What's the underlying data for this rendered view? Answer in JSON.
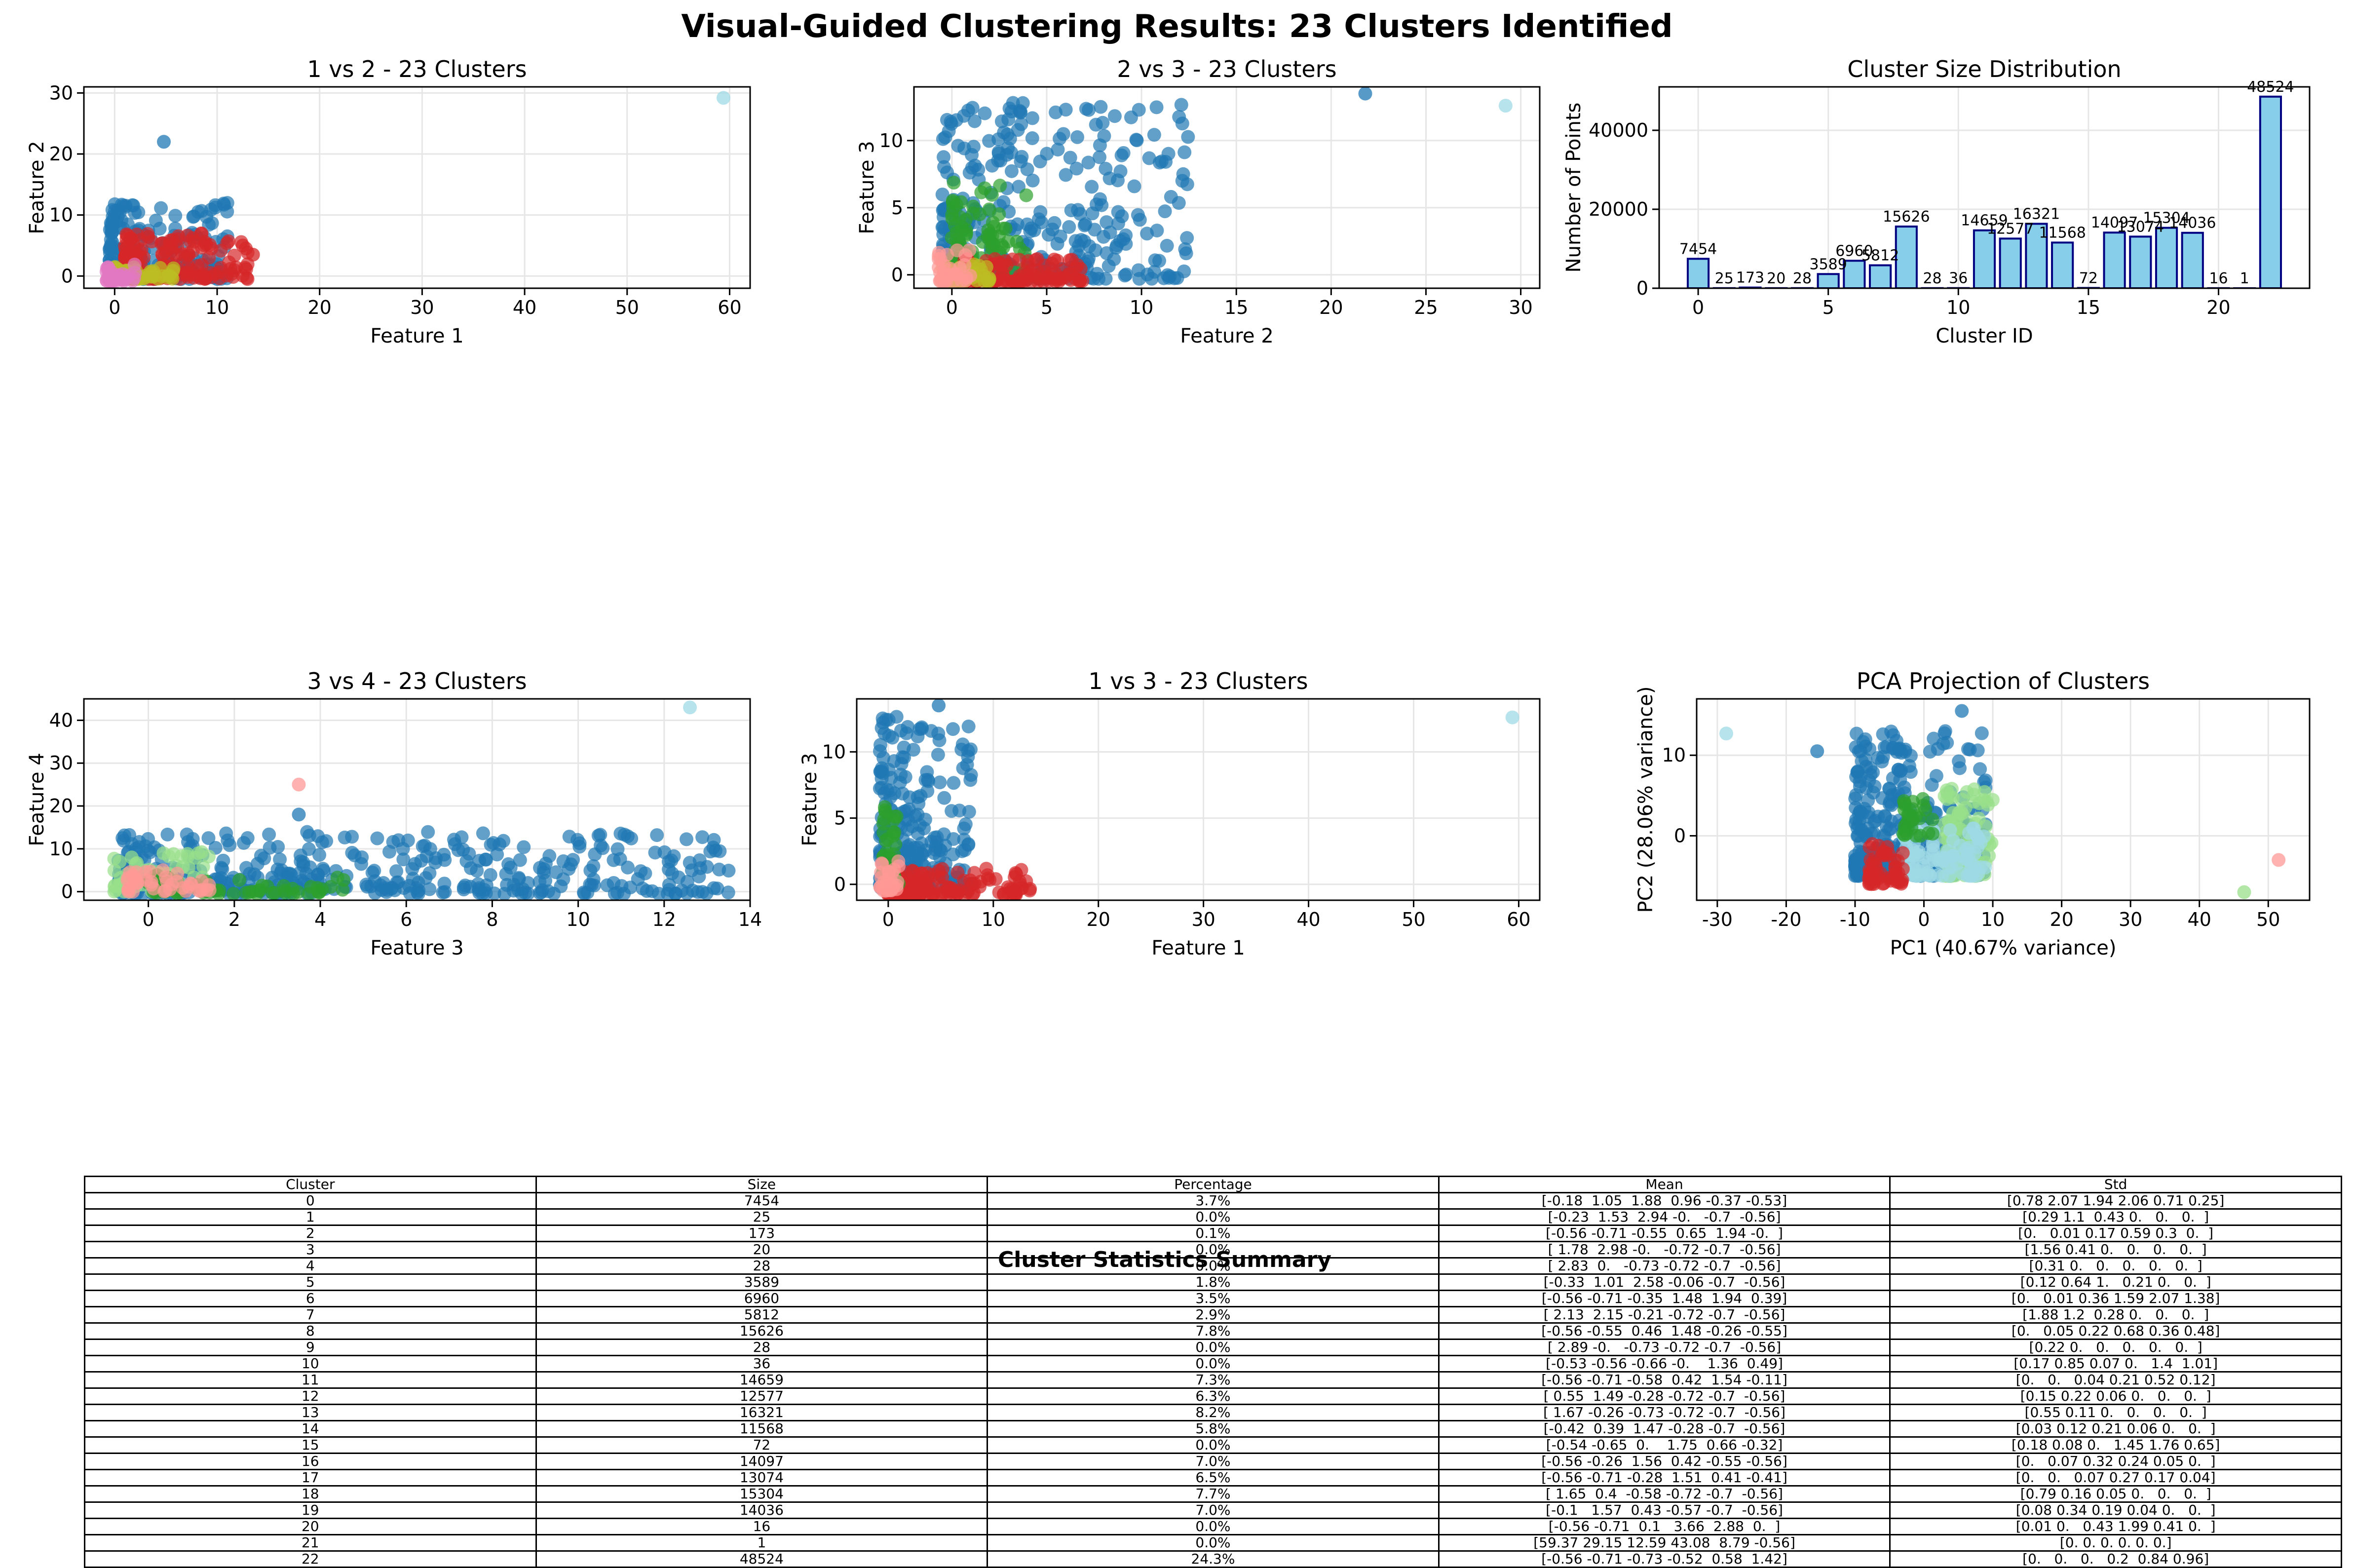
{
  "figure_title": "Visual-Guided Clustering Results: 23 Clusters Identified",
  "colors": {
    "tab_blue": "#1f77b4",
    "red": "#d62728",
    "green": "#2ca02c",
    "light_green": "#98df8a",
    "light_blue": "#9edae5",
    "pink": "#ff9896",
    "olive": "#bcbd22",
    "khaki": "#dbdb8d",
    "orchid": "#e377c2",
    "bar_fill": "#87ceeb",
    "bar_edge": "#000080",
    "grid": "#e6e6e6"
  },
  "chart_data": [
    {
      "type": "scatter",
      "title": "1 vs 2 - 23 Clusters",
      "xlabel": "Feature 1",
      "ylabel": "Feature 2",
      "xlim": [
        -3,
        62
      ],
      "ylim": [
        -2,
        31
      ],
      "xticks": [
        0,
        10,
        20,
        30,
        40,
        50,
        60
      ],
      "yticks": [
        0,
        10,
        20,
        30
      ],
      "grid": true,
      "clouds": [
        {
          "cluster_color": "tab_blue",
          "x": [
            -0.5,
            11
          ],
          "y": [
            -0.5,
            12
          ],
          "n": 220
        },
        {
          "cluster_color": "red",
          "x": [
            1,
            13
          ],
          "y": [
            -0.5,
            7
          ],
          "n": 160
        },
        {
          "cluster_color": "olive",
          "x": [
            -0.5,
            6
          ],
          "y": [
            -0.5,
            1.5
          ],
          "n": 60
        },
        {
          "cluster_color": "orchid",
          "x": [
            -0.8,
            2
          ],
          "y": [
            -0.8,
            2
          ],
          "n": 40
        }
      ],
      "points": [
        {
          "x": 59.4,
          "y": 29.2,
          "cluster_color": "light_blue"
        },
        {
          "x": 4.8,
          "y": 22,
          "cluster_color": "tab_blue"
        },
        {
          "x": 13.5,
          "y": 3.5,
          "cluster_color": "red"
        },
        {
          "x": 12.5,
          "y": 5,
          "cluster_color": "red"
        }
      ]
    },
    {
      "type": "scatter",
      "title": "2 vs 3 - 23 Clusters",
      "xlabel": "Feature 2",
      "ylabel": "Feature 3",
      "xlim": [
        -2,
        31
      ],
      "ylim": [
        -1,
        14
      ],
      "xticks": [
        0,
        5,
        10,
        15,
        20,
        25,
        30
      ],
      "yticks": [
        0,
        5,
        10
      ],
      "grid": true,
      "clouds": [
        {
          "cluster_color": "tab_blue",
          "x": [
            -0.5,
            12.5
          ],
          "y": [
            -0.3,
            13
          ],
          "n": 320
        },
        {
          "cluster_color": "green",
          "x": [
            0,
            4
          ],
          "y": [
            0,
            7
          ],
          "n": 90
        },
        {
          "cluster_color": "red",
          "x": [
            0.5,
            7
          ],
          "y": [
            -0.5,
            1.2
          ],
          "n": 120
        },
        {
          "cluster_color": "olive",
          "x": [
            -0.5,
            2
          ],
          "y": [
            -0.5,
            0.8
          ],
          "n": 50
        },
        {
          "cluster_color": "pink",
          "x": [
            -0.7,
            1
          ],
          "y": [
            -0.5,
            2
          ],
          "n": 30
        }
      ],
      "points": [
        {
          "x": 21.8,
          "y": 13.5,
          "cluster_color": "tab_blue"
        },
        {
          "x": 29.2,
          "y": 12.6,
          "cluster_color": "light_blue"
        }
      ]
    },
    {
      "type": "bar",
      "title": "Cluster Size Distribution",
      "xlabel": "Cluster ID",
      "ylabel": "Number of Points",
      "xlim": [
        -1.5,
        23.5
      ],
      "ylim": [
        0,
        51000
      ],
      "xticks": [
        0,
        5,
        10,
        15,
        20
      ],
      "yticks": [
        0,
        20000,
        40000
      ],
      "ytick_labels": [
        "0",
        "20000",
        "40000"
      ],
      "grid": true,
      "categories": [
        0,
        1,
        2,
        3,
        4,
        5,
        6,
        7,
        8,
        9,
        10,
        11,
        12,
        13,
        14,
        15,
        16,
        17,
        18,
        19,
        20,
        21,
        22
      ],
      "values": [
        7454,
        25,
        173,
        20,
        28,
        3589,
        6960,
        5812,
        15626,
        28,
        36,
        14659,
        12577,
        16321,
        11568,
        72,
        14097,
        13074,
        15304,
        14036,
        16,
        1,
        48524
      ],
      "labels": [
        "7454",
        "25",
        "173",
        "20",
        "28",
        "3589",
        "6960",
        "5812",
        "15626",
        "28",
        "36",
        "14659",
        "12577",
        "16321",
        "11568",
        "72",
        "14097",
        "13074",
        "15304",
        "14036",
        "16",
        "1",
        "48524"
      ]
    },
    {
      "type": "scatter",
      "title": "3 vs 4 - 23 Clusters",
      "xlabel": "Feature 3",
      "ylabel": "Feature 4",
      "xlim": [
        -1.5,
        14
      ],
      "ylim": [
        -2,
        45
      ],
      "xticks": [
        0,
        2,
        4,
        6,
        8,
        10,
        12,
        14
      ],
      "yticks": [
        0,
        10,
        20,
        30,
        40
      ],
      "grid": true,
      "clouds": [
        {
          "cluster_color": "tab_blue",
          "x": [
            -0.7,
            13.5
          ],
          "y": [
            -0.5,
            14
          ],
          "n": 420
        },
        {
          "cluster_color": "light_green",
          "x": [
            -0.8,
            1.5
          ],
          "y": [
            0,
            10
          ],
          "n": 50
        },
        {
          "cluster_color": "green",
          "x": [
            0,
            5
          ],
          "y": [
            -0.5,
            4
          ],
          "n": 60
        },
        {
          "cluster_color": "pink",
          "x": [
            -0.5,
            1.5
          ],
          "y": [
            0,
            5
          ],
          "n": 40
        }
      ],
      "points": [
        {
          "x": 12.6,
          "y": 43,
          "cluster_color": "light_blue"
        },
        {
          "x": 3.5,
          "y": 25,
          "cluster_color": "pink"
        },
        {
          "x": 3.5,
          "y": 18,
          "cluster_color": "tab_blue"
        }
      ]
    },
    {
      "type": "scatter",
      "title": "1 vs 3 - 23 Clusters",
      "xlabel": "Feature 1",
      "ylabel": "Feature 3",
      "xlim": [
        -3,
        62
      ],
      "ylim": [
        -1.2,
        14
      ],
      "xticks": [
        0,
        10,
        20,
        30,
        40,
        50,
        60
      ],
      "yticks": [
        0,
        5,
        10
      ],
      "grid": true,
      "clouds": [
        {
          "cluster_color": "tab_blue",
          "x": [
            -0.8,
            8
          ],
          "y": [
            -0.3,
            13
          ],
          "n": 240
        },
        {
          "cluster_color": "red",
          "x": [
            0,
            13.5
          ],
          "y": [
            -0.8,
            1.2
          ],
          "n": 150
        },
        {
          "cluster_color": "green",
          "x": [
            -0.5,
            1
          ],
          "y": [
            0,
            6
          ],
          "n": 40
        },
        {
          "cluster_color": "pink",
          "x": [
            -0.8,
            1
          ],
          "y": [
            -0.5,
            2
          ],
          "n": 30
        }
      ],
      "points": [
        {
          "x": 59.4,
          "y": 12.6,
          "cluster_color": "light_blue"
        },
        {
          "x": 4.8,
          "y": 13.5,
          "cluster_color": "tab_blue"
        }
      ]
    },
    {
      "type": "scatter",
      "title": "PCA Projection of Clusters",
      "xlabel": "PC1 (40.67% variance)",
      "ylabel": "PC2 (28.06% variance)",
      "xlim": [
        -33,
        56
      ],
      "ylim": [
        -8,
        17
      ],
      "xticks": [
        -30,
        -20,
        -10,
        0,
        10,
        20,
        30,
        40,
        50
      ],
      "yticks": [
        0,
        10
      ],
      "grid": true,
      "clouds": [
        {
          "cluster_color": "tab_blue",
          "x": [
            -10,
            9
          ],
          "y": [
            -5,
            13
          ],
          "n": 330
        },
        {
          "cluster_color": "light_green",
          "x": [
            3,
            10
          ],
          "y": [
            -5,
            6
          ],
          "n": 110
        },
        {
          "cluster_color": "light_blue",
          "x": [
            -3,
            9
          ],
          "y": [
            -5,
            1
          ],
          "n": 90
        },
        {
          "cluster_color": "red",
          "x": [
            -8,
            -3
          ],
          "y": [
            -6,
            -1
          ],
          "n": 50
        },
        {
          "cluster_color": "green",
          "x": [
            -3,
            2
          ],
          "y": [
            0,
            5
          ],
          "n": 30
        }
      ],
      "points": [
        {
          "x": -28.7,
          "y": 12.7,
          "cluster_color": "light_blue"
        },
        {
          "x": -15.5,
          "y": 10.5,
          "cluster_color": "tab_blue"
        },
        {
          "x": 51.5,
          "y": -3,
          "cluster_color": "pink"
        },
        {
          "x": 46.5,
          "y": -7,
          "cluster_color": "light_green"
        },
        {
          "x": 5.5,
          "y": 15.5,
          "cluster_color": "tab_blue"
        }
      ]
    },
    {
      "type": "table",
      "title": "Cluster Statistics Summary",
      "columns": [
        "Cluster",
        "Size",
        "Percentage",
        "Mean",
        "Std"
      ],
      "rows": [
        [
          "0",
          "7454",
          "3.7%",
          "[-0.18  1.05  1.88  0.96 -0.37 -0.53]",
          "[0.78 2.07 1.94 2.06 0.71 0.25]"
        ],
        [
          "1",
          "25",
          "0.0%",
          "[-0.23  1.53  2.94 -0.   -0.7  -0.56]",
          "[0.29 1.1  0.43 0.   0.   0.  ]"
        ],
        [
          "2",
          "173",
          "0.1%",
          "[-0.56 -0.71 -0.55  0.65  1.94 -0.  ]",
          "[0.   0.01 0.17 0.59 0.3  0.  ]"
        ],
        [
          "3",
          "20",
          "0.0%",
          "[ 1.78  2.98 -0.   -0.72 -0.7  -0.56]",
          "[1.56 0.41 0.   0.   0.   0.  ]"
        ],
        [
          "4",
          "28",
          "0.0%",
          "[ 2.83  0.   -0.73 -0.72 -0.7  -0.56]",
          "[0.31 0.   0.   0.   0.   0.  ]"
        ],
        [
          "5",
          "3589",
          "1.8%",
          "[-0.33  1.01  2.58 -0.06 -0.7  -0.56]",
          "[0.12 0.64 1.   0.21 0.   0.  ]"
        ],
        [
          "6",
          "6960",
          "3.5%",
          "[-0.56 -0.71 -0.35  1.48  1.94  0.39]",
          "[0.   0.01 0.36 1.59 2.07 1.38]"
        ],
        [
          "7",
          "5812",
          "2.9%",
          "[ 2.13  2.15 -0.21 -0.72 -0.7  -0.56]",
          "[1.88 1.2  0.28 0.   0.   0.  ]"
        ],
        [
          "8",
          "15626",
          "7.8%",
          "[-0.56 -0.55  0.46  1.48 -0.26 -0.55]",
          "[0.   0.05 0.22 0.68 0.36 0.48]"
        ],
        [
          "9",
          "28",
          "0.0%",
          "[ 2.89 -0.   -0.73 -0.72 -0.7  -0.56]",
          "[0.22 0.   0.   0.   0.   0.  ]"
        ],
        [
          "10",
          "36",
          "0.0%",
          "[-0.53 -0.56 -0.66 -0.    1.36  0.49]",
          "[0.17 0.85 0.07 0.   1.4  1.01]"
        ],
        [
          "11",
          "14659",
          "7.3%",
          "[-0.56 -0.71 -0.58  0.42  1.54 -0.11]",
          "[0.   0.   0.04 0.21 0.52 0.12]"
        ],
        [
          "12",
          "12577",
          "6.3%",
          "[ 0.55  1.49 -0.28 -0.72 -0.7  -0.56]",
          "[0.15 0.22 0.06 0.   0.   0.  ]"
        ],
        [
          "13",
          "16321",
          "8.2%",
          "[ 1.67 -0.26 -0.73 -0.72 -0.7  -0.56]",
          "[0.55 0.11 0.   0.   0.   0.  ]"
        ],
        [
          "14",
          "11568",
          "5.8%",
          "[-0.42  0.39  1.47 -0.28 -0.7  -0.56]",
          "[0.03 0.12 0.21 0.06 0.   0.  ]"
        ],
        [
          "15",
          "72",
          "0.0%",
          "[-0.54 -0.65  0.    1.75  0.66 -0.32]",
          "[0.18 0.08 0.   1.45 1.76 0.65]"
        ],
        [
          "16",
          "14097",
          "7.0%",
          "[-0.56 -0.26  1.56  0.42 -0.55 -0.56]",
          "[0.   0.07 0.32 0.24 0.05 0.  ]"
        ],
        [
          "17",
          "13074",
          "6.5%",
          "[-0.56 -0.71 -0.28  1.51  0.41 -0.41]",
          "[0.   0.   0.07 0.27 0.17 0.04]"
        ],
        [
          "18",
          "15304",
          "7.7%",
          "[ 1.65  0.4  -0.58 -0.72 -0.7  -0.56]",
          "[0.79 0.16 0.05 0.   0.   0.  ]"
        ],
        [
          "19",
          "14036",
          "7.0%",
          "[-0.1   1.57  0.43 -0.57 -0.7  -0.56]",
          "[0.08 0.34 0.19 0.04 0.   0.  ]"
        ],
        [
          "20",
          "16",
          "0.0%",
          "[-0.56 -0.71  0.1   3.66  2.88  0.  ]",
          "[0.01 0.   0.43 1.99 0.41 0.  ]"
        ],
        [
          "21",
          "1",
          "0.0%",
          "[59.37 29.15 12.59 43.08  8.79 -0.56]",
          "[0. 0. 0. 0. 0. 0.]"
        ],
        [
          "22",
          "48524",
          "24.3%",
          "[-0.56 -0.71 -0.73 -0.52  0.58  1.42]",
          "[0.   0.   0.   0.2  0.84 0.96]"
        ]
      ]
    }
  ]
}
